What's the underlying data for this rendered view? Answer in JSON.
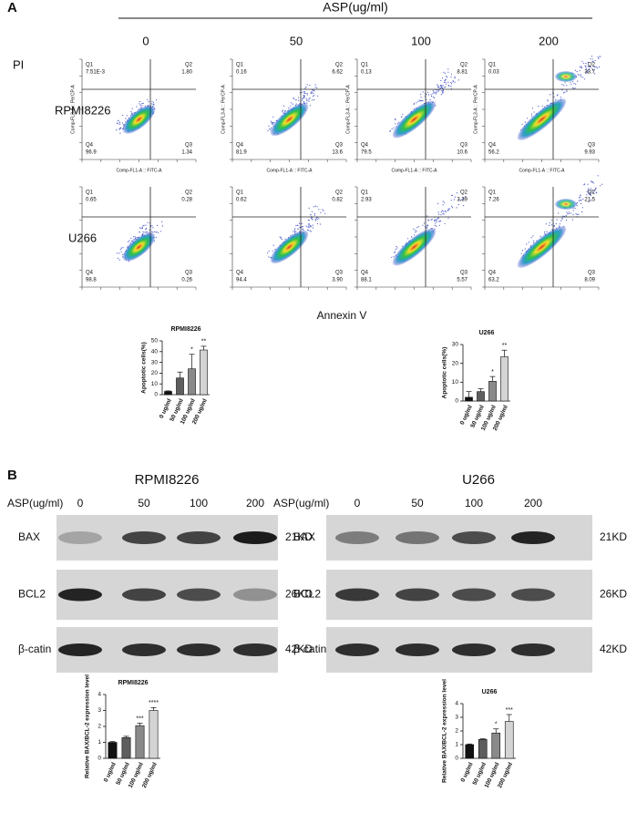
{
  "panel_a": {
    "label": "A",
    "header": "ASP(ug/ml)",
    "doses": [
      "0",
      "50",
      "100",
      "200"
    ],
    "y_label": "PI",
    "x_label": "Annexin V",
    "quadrant_names": [
      "Q1",
      "Q2",
      "Q3",
      "Q4"
    ],
    "rows": [
      {
        "name": "RPMI8226",
        "axis_x": "Comp-FL1-A :: FITC-A",
        "axis_y": "Comp-FL3-A :: PerCP-A",
        "plots": [
          {
            "q1": "7.51E-3",
            "q2": "1.80",
            "q3": "1.34",
            "q4": "96.9"
          },
          {
            "q1": "0.16",
            "q2": "6.62",
            "q3": "13.6",
            "q4": "81.9"
          },
          {
            "q1": "0.13",
            "q2": "8.81",
            "q3": "10.6",
            "q4": "79.5"
          },
          {
            "q1": "0.03",
            "q2": "33.7",
            "q3": "9.93",
            "q4": "56.2"
          }
        ]
      },
      {
        "name": "U266",
        "plots": [
          {
            "q1": "0.65",
            "q2": "0.28",
            "q3": "0.26",
            "q4": "98.8"
          },
          {
            "q1": "0.62",
            "q2": "0.82",
            "q3": "3.90",
            "q4": "94.4"
          },
          {
            "q1": "2.93",
            "q2": "3.39",
            "q3": "5.57",
            "q4": "88.1"
          },
          {
            "q1": "7.26",
            "q2": "21.5",
            "q3": "8.09",
            "q4": "63.2"
          }
        ]
      }
    ]
  },
  "panel_b": {
    "label": "B",
    "blots": [
      {
        "title": "RPMI8226",
        "dose_label": "ASP(ug/ml)",
        "doses": [
          "0",
          "50",
          "100",
          "200"
        ],
        "proteins": [
          {
            "name": "BAX",
            "size": "21KD"
          },
          {
            "name": "BCL2",
            "size": "26KD"
          },
          {
            "name": "β-catin",
            "size": "42KD"
          }
        ]
      },
      {
        "title": "U266",
        "dose_label": "ASP(ug/ml)",
        "doses": [
          "0",
          "50",
          "100",
          "200"
        ],
        "proteins": [
          {
            "name": "BAX",
            "size": "21KD"
          },
          {
            "name": "BCL2",
            "size": "26KD"
          },
          {
            "name": "β-catin",
            "size": "42KD"
          }
        ]
      }
    ]
  },
  "chart_data": [
    {
      "type": "bar",
      "title": "RPMI8226",
      "y_label": "Apoptotic cells(%)",
      "categories": [
        "0 ug/ml",
        "50 ug/ml",
        "100 ug/ml",
        "200 ug/ml"
      ],
      "values": [
        3,
        15.5,
        24,
        41.5
      ],
      "errors": [
        0.5,
        5.5,
        13.5,
        3.5
      ],
      "significance": [
        null,
        null,
        "*",
        "**"
      ],
      "colors": [
        "#111111",
        "#5e5e5e",
        "#8a8a8a",
        "#d4d4d4"
      ],
      "ylim": [
        0,
        50
      ],
      "yticks": [
        0,
        10,
        20,
        30,
        40,
        50
      ]
    },
    {
      "type": "bar",
      "title": "U266",
      "y_label": "Apoptotic cells(%)",
      "categories": [
        "0 ug/ml",
        "50 ug/ml",
        "100 ug/ml",
        "200 ug/ml"
      ],
      "values": [
        2,
        5,
        10.5,
        23.5
      ],
      "errors": [
        3,
        1.5,
        2.5,
        3.5
      ],
      "significance": [
        null,
        null,
        "*",
        "**"
      ],
      "colors": [
        "#111111",
        "#5e5e5e",
        "#8a8a8a",
        "#d4d4d4"
      ],
      "ylim": [
        0,
        30
      ],
      "yticks": [
        0,
        10,
        20,
        30
      ]
    },
    {
      "type": "bar",
      "title": "RPMI8226",
      "y_label": "Relative BAX/BCL-2 expression level",
      "categories": [
        "0 ug/ml",
        "50 ug/ml",
        "100 ug/ml",
        "200 ug/ml"
      ],
      "values": [
        1,
        1.3,
        2.05,
        3.0
      ],
      "errors": [
        0.05,
        0.08,
        0.15,
        0.18
      ],
      "significance": [
        null,
        null,
        "***",
        "****"
      ],
      "colors": [
        "#111111",
        "#5e5e5e",
        "#8a8a8a",
        "#d4d4d4"
      ],
      "ylim": [
        0,
        4
      ],
      "yticks": [
        0,
        1,
        2,
        3,
        4
      ]
    },
    {
      "type": "bar",
      "title": "U266",
      "y_label": "Relative BAX/BCL-2 expression level",
      "categories": [
        "0 ug/ml",
        "50 ug/ml",
        "100 ug/ml",
        "200 ug/ml"
      ],
      "values": [
        1,
        1.38,
        1.85,
        2.7
      ],
      "errors": [
        0.05,
        0.05,
        0.3,
        0.5
      ],
      "significance": [
        null,
        null,
        "*",
        "***"
      ],
      "colors": [
        "#111111",
        "#5e5e5e",
        "#8a8a8a",
        "#d4d4d4"
      ],
      "ylim": [
        0,
        4
      ],
      "yticks": [
        0,
        1,
        2,
        3,
        4
      ]
    }
  ]
}
